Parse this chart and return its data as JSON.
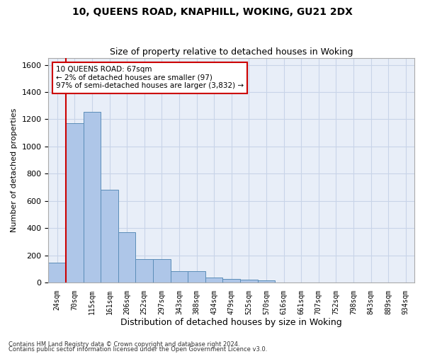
{
  "title1": "10, QUEENS ROAD, KNAPHILL, WOKING, GU21 2DX",
  "title2": "Size of property relative to detached houses in Woking",
  "xlabel": "Distribution of detached houses by size in Woking",
  "ylabel": "Number of detached properties",
  "categories": [
    "24sqm",
    "70sqm",
    "115sqm",
    "161sqm",
    "206sqm",
    "252sqm",
    "297sqm",
    "343sqm",
    "388sqm",
    "434sqm",
    "479sqm",
    "525sqm",
    "570sqm",
    "616sqm",
    "661sqm",
    "707sqm",
    "752sqm",
    "798sqm",
    "843sqm",
    "889sqm",
    "934sqm"
  ],
  "values": [
    147,
    1170,
    1255,
    680,
    370,
    170,
    170,
    83,
    83,
    38,
    25,
    20,
    15,
    0,
    0,
    0,
    0,
    0,
    0,
    0,
    0
  ],
  "bar_color": "#aec6e8",
  "bar_edge_color": "#5b8db8",
  "grid_color": "#c8d4e8",
  "bg_color": "#e8eef8",
  "vline_x": 0.5,
  "vline_color": "#cc0000",
  "annotation_text": "10 QUEENS ROAD: 67sqm\n← 2% of detached houses are smaller (97)\n97% of semi-detached houses are larger (3,832) →",
  "annotation_box_color": "#cc0000",
  "ylim": [
    0,
    1650
  ],
  "yticks": [
    0,
    200,
    400,
    600,
    800,
    1000,
    1200,
    1400,
    1600
  ],
  "footer1": "Contains HM Land Registry data © Crown copyright and database right 2024.",
  "footer2": "Contains public sector information licensed under the Open Government Licence v3.0."
}
